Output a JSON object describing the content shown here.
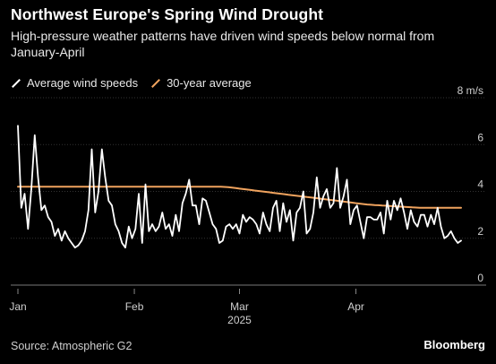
{
  "header": {
    "title": "Northwest Europe's Spring Wind Drought",
    "subtitle": "High-pressure weather patterns have driven wind speeds below normal from January-April"
  },
  "legend": {
    "items": [
      {
        "label": "Average wind speeds",
        "color": "#ffffff"
      },
      {
        "label": "30-year average",
        "color": "#f0a35e"
      }
    ]
  },
  "footer": {
    "source": "Source: Atmospheric G2",
    "brand": "Bloomberg"
  },
  "chart_data": {
    "type": "line",
    "unit_label": "8 m/s",
    "y_ticks": [
      "0",
      "2",
      "4",
      "6"
    ],
    "ylim": [
      0,
      8
    ],
    "x_ticks": [
      {
        "label": "Jan",
        "day": 1
      },
      {
        "label": "Feb",
        "day": 32
      },
      {
        "label": "Mar",
        "day": 60
      },
      {
        "label": "Apr",
        "day": 91
      }
    ],
    "x_sublabel": "2025",
    "xlim": [
      1,
      119
    ],
    "grid": "horizontal",
    "series": [
      {
        "name": "Average wind speeds",
        "color": "#ffffff",
        "values": [
          6.8,
          3.3,
          3.9,
          2.4,
          4.1,
          6.4,
          4.6,
          3.2,
          3.4,
          2.9,
          2.7,
          2.1,
          2.4,
          1.9,
          2.3,
          2.0,
          1.8,
          1.6,
          1.7,
          1.9,
          2.3,
          3.2,
          5.8,
          3.1,
          4.0,
          5.8,
          4.6,
          3.6,
          3.4,
          2.6,
          2.3,
          1.8,
          1.6,
          2.5,
          2.0,
          2.4,
          3.9,
          1.8,
          4.3,
          2.3,
          2.6,
          2.3,
          2.5,
          3.1,
          2.4,
          2.6,
          2.1,
          3.0,
          2.3,
          3.5,
          3.9,
          4.5,
          3.4,
          3.4,
          2.6,
          3.7,
          3.6,
          3.1,
          2.6,
          2.4,
          1.8,
          1.9,
          2.5,
          2.6,
          2.4,
          2.6,
          2.2,
          3.0,
          2.7,
          2.9,
          2.8,
          2.6,
          2.2,
          3.1,
          2.6,
          2.3,
          3.3,
          3.6,
          2.3,
          3.5,
          2.7,
          3.2,
          1.9,
          3.1,
          3.3,
          4.0,
          2.2,
          2.4,
          3.1,
          4.6,
          3.3,
          3.8,
          4.1,
          3.3,
          3.5,
          5.0,
          3.3,
          3.8,
          4.5,
          2.6,
          3.2,
          3.4,
          2.7,
          2.0,
          2.9,
          2.9,
          2.8,
          2.8,
          3.1,
          2.2,
          3.6,
          2.8,
          3.6,
          3.2,
          3.7,
          3.1,
          2.4,
          3.2,
          2.7,
          2.5,
          3.0,
          3.0,
          2.5,
          3.0,
          2.6,
          3.3,
          2.5,
          2.0,
          2.1,
          2.3,
          2.0,
          1.8,
          1.9
        ]
      },
      {
        "name": "30-year average",
        "color": "#f0a35e",
        "values": [
          4.2,
          4.2,
          4.2,
          4.2,
          4.2,
          4.2,
          4.2,
          4.2,
          4.2,
          4.2,
          4.2,
          4.2,
          4.2,
          4.2,
          4.2,
          4.2,
          4.2,
          4.2,
          4.2,
          4.2,
          4.2,
          4.2,
          4.2,
          4.2,
          4.2,
          4.2,
          4.2,
          4.2,
          4.2,
          4.2,
          4.2,
          4.2,
          4.2,
          4.2,
          4.2,
          4.2,
          4.2,
          4.2,
          4.2,
          4.2,
          4.2,
          4.2,
          4.2,
          4.2,
          4.2,
          4.2,
          4.2,
          4.2,
          4.2,
          4.2,
          4.2,
          4.2,
          4.2,
          4.2,
          4.2,
          4.19,
          4.18,
          4.16,
          4.14,
          4.12,
          4.1,
          4.08,
          4.06,
          4.04,
          4.02,
          4.0,
          3.98,
          3.96,
          3.94,
          3.92,
          3.9,
          3.88,
          3.86,
          3.84,
          3.82,
          3.8,
          3.78,
          3.76,
          3.74,
          3.72,
          3.7,
          3.68,
          3.66,
          3.64,
          3.62,
          3.6,
          3.58,
          3.56,
          3.54,
          3.52,
          3.5,
          3.48,
          3.46,
          3.44,
          3.43,
          3.42,
          3.41,
          3.4,
          3.39,
          3.38,
          3.37,
          3.36,
          3.35,
          3.34,
          3.33,
          3.32,
          3.31,
          3.3,
          3.3,
          3.3,
          3.3,
          3.3,
          3.3,
          3.3,
          3.3,
          3.3,
          3.3,
          3.3,
          3.3
        ]
      }
    ]
  }
}
